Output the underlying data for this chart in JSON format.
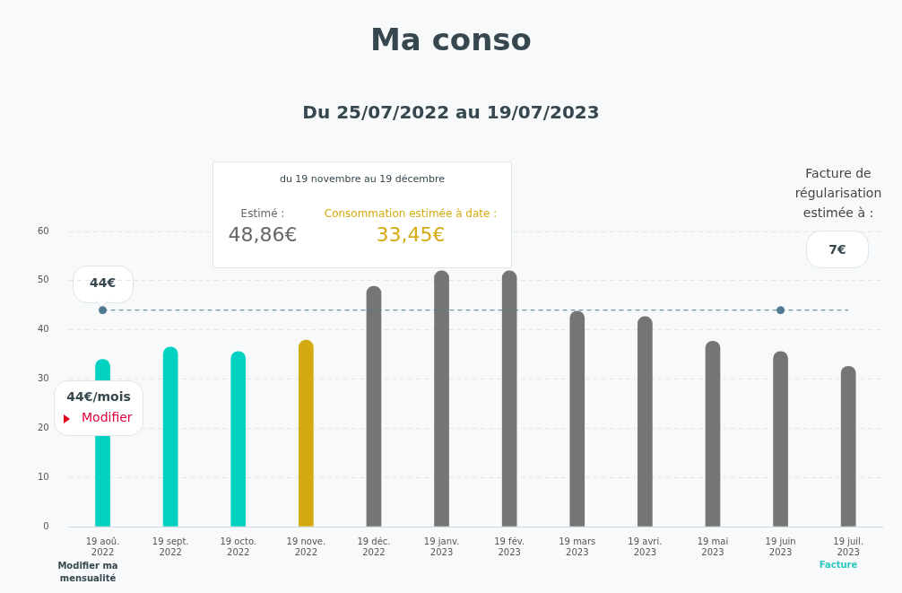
{
  "chart_data": {
    "type": "bar",
    "title": "Ma conso",
    "subtitle": "Du 25/07/2022 au 19/07/2023",
    "categories": [
      "19 aoû. 2022",
      "19 sept. 2022",
      "19 octo. 2022",
      "19 nove. 2022",
      "19 déc. 2022",
      "19 janv. 2023",
      "19 fév. 2023",
      "19 mars 2023",
      "19 avri. 2023",
      "19 mai 2023",
      "19 juin 2023",
      "19 juil. 2023"
    ],
    "series": [
      {
        "values": [
          34,
          36.5,
          35.6,
          37.9,
          48.86,
          52,
          52,
          43.8,
          42.7,
          37.7,
          35.6,
          32.6
        ],
        "colors": [
          "#00d1c1",
          "#00d1c1",
          "#00d1c1",
          "#d4aa10",
          "#757575",
          "#757575",
          "#757575",
          "#757575",
          "#757575",
          "#757575",
          "#757575",
          "#757575"
        ]
      },
      {
        "type": "scatter",
        "x": [
          "19 aoû. 2022",
          "19 juin 2023"
        ],
        "values": [
          44,
          44
        ],
        "color": "#4f7a90"
      }
    ],
    "ylim": [
      0,
      60
    ],
    "yticks": [
      0,
      10,
      20,
      30,
      40,
      50,
      60
    ],
    "grid": "y",
    "legend": false,
    "marker": "circle",
    "ref_lines": [
      {
        "axis": "y",
        "value": 44,
        "label": "44€",
        "color": "#4f7a90",
        "line_style": "dashed"
      }
    ],
    "annotations": [
      "Facture de régularisation estimée à :",
      "7€",
      "du 19 novembre au 19 décembre",
      "Estimé :",
      "48,86€",
      "Consommation estimée à date :",
      "33,45€",
      "44€/mois",
      "Modifier",
      "Modifier ma mensualité",
      "Facture"
    ]
  }
}
